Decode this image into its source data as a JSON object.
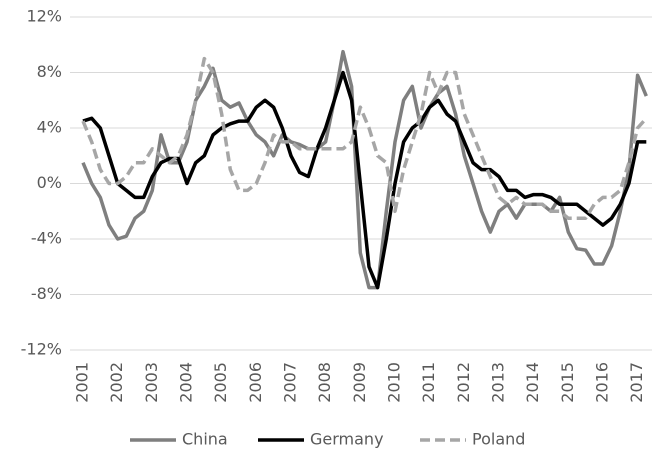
{
  "chart_data": {
    "type": "line",
    "x": [
      2001,
      2001.25,
      2001.5,
      2001.75,
      2002,
      2002.25,
      2002.5,
      2002.75,
      2003,
      2003.25,
      2003.5,
      2003.75,
      2004,
      2004.25,
      2004.5,
      2004.75,
      2005,
      2005.25,
      2005.5,
      2005.75,
      2006,
      2006.25,
      2006.5,
      2006.75,
      2007,
      2007.25,
      2007.5,
      2007.75,
      2008,
      2008.25,
      2008.5,
      2008.75,
      2009,
      2009.25,
      2009.5,
      2009.75,
      2010,
      2010.25,
      2010.5,
      2010.75,
      2011,
      2011.25,
      2011.5,
      2011.75,
      2012,
      2012.25,
      2012.5,
      2012.75,
      2013,
      2013.25,
      2013.5,
      2013.75,
      2014,
      2014.25,
      2014.5,
      2014.75,
      2015,
      2015.25,
      2015.5,
      2015.75,
      2016,
      2016.25,
      2016.5,
      2016.75,
      2017,
      2017.25
    ],
    "series": [
      {
        "name": "China",
        "color": "#7f7f7f",
        "dash": false,
        "values": [
          1.5,
          0,
          -1,
          -3,
          -4,
          -3.8,
          -2.5,
          -2,
          -0.5,
          3.5,
          1.5,
          1.5,
          3,
          6,
          7,
          8.3,
          6,
          5.5,
          5.8,
          4.5,
          3.5,
          3,
          2,
          3.5,
          3,
          2.8,
          2.5,
          2.5,
          3,
          6,
          9.5,
          7,
          -5,
          -7.5,
          -7.5,
          -2,
          3,
          6,
          7,
          4,
          5.5,
          6.5,
          7,
          5,
          2,
          0,
          -2,
          -3.5,
          -2,
          -1.5,
          -2.5,
          -1.5,
          -1.5,
          -1.5,
          -2,
          -1,
          -3.5,
          -4.7,
          -4.8,
          -5.8,
          -5.8,
          -4.5,
          -2,
          1,
          7.8,
          6.3
        ]
      },
      {
        "name": "Germany",
        "color": "#000000",
        "dash": false,
        "values": [
          4.5,
          4.7,
          4,
          2,
          0,
          -0.5,
          -1,
          -1,
          0.5,
          1.5,
          1.8,
          1.8,
          0,
          1.5,
          2,
          3.5,
          4,
          4.3,
          4.5,
          4.5,
          5.5,
          6,
          5.5,
          4,
          2,
          0.8,
          0.5,
          2.5,
          4,
          6,
          8,
          6,
          0,
          -6,
          -7.5,
          -4,
          0,
          3,
          4,
          4.5,
          5.5,
          6,
          5,
          4.5,
          3,
          1.5,
          1,
          1,
          0.5,
          -0.5,
          -0.5,
          -1,
          -0.8,
          -0.8,
          -1,
          -1.5,
          -1.5,
          -1.5,
          -2,
          -2.5,
          -3,
          -2.5,
          -1.5,
          0,
          3,
          3
        ]
      },
      {
        "name": "Poland",
        "color": "#a6a6a6",
        "dash": true,
        "values": [
          4.5,
          3,
          1,
          0,
          0,
          0.5,
          1.5,
          1.5,
          2.5,
          2,
          1.5,
          2,
          3.5,
          6,
          9,
          8,
          5,
          1,
          -0.5,
          -0.5,
          0,
          1.5,
          3.5,
          3,
          3,
          2.5,
          2.5,
          2.5,
          2.5,
          2.5,
          2.5,
          3,
          5.5,
          4,
          2,
          1.5,
          -2,
          1,
          3,
          5,
          8,
          6.5,
          8,
          8,
          5,
          3.5,
          2,
          0.5,
          -1,
          -1.5,
          -1,
          -1.5,
          -1.5,
          -1.5,
          -2,
          -2,
          -2.5,
          -2.5,
          -2.5,
          -1.5,
          -1,
          -1,
          -0.5,
          1.5,
          4,
          4.7
        ]
      }
    ],
    "xlim": [
      2001,
      2017.3
    ],
    "xticks": [
      2001,
      2002,
      2003,
      2004,
      2005,
      2006,
      2007,
      2008,
      2009,
      2010,
      2011,
      2012,
      2013,
      2014,
      2015,
      2016,
      2017
    ],
    "ylim": [
      -12,
      12
    ],
    "yticks": [
      {
        "value": -12,
        "label": "-12%"
      },
      {
        "value": -8,
        "label": "-8%"
      },
      {
        "value": -4,
        "label": "-4%"
      },
      {
        "value": 0,
        "label": "0%"
      },
      {
        "value": 4,
        "label": "4%"
      },
      {
        "value": 8,
        "label": "8%"
      },
      {
        "value": 12,
        "label": "12%"
      }
    ],
    "grid": true,
    "legend": "bottom"
  }
}
